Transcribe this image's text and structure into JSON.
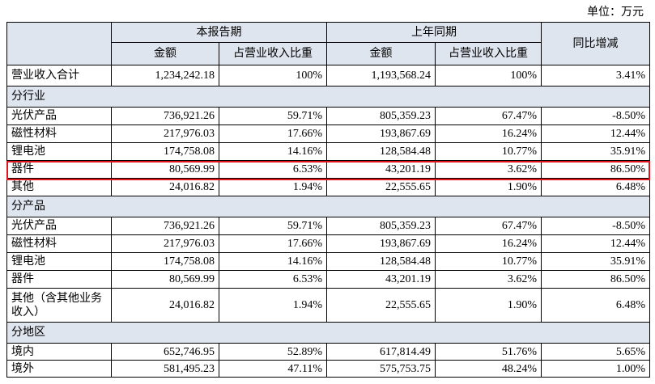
{
  "unit": "单位：万元",
  "table": {
    "header_top": [
      "本报告期",
      "上年同期",
      "同比增减"
    ],
    "header_sub": [
      "金额",
      "占营业收入比重",
      "金额",
      "占营业收入比重"
    ],
    "rows": [
      [
        "营业收入合计",
        "1,234,242.18",
        "100%",
        "1,193,568.24",
        "100%",
        "3.41%"
      ],
      [
        "分行业"
      ],
      [
        "光伏产品",
        "736,921.26",
        "59.71%",
        "805,359.23",
        "67.47%",
        "-8.50%"
      ],
      [
        "磁性材料",
        "217,976.03",
        "17.66%",
        "193,867.69",
        "16.24%",
        "12.44%"
      ],
      [
        "锂电池",
        "174,758.08",
        "14.16%",
        "128,584.48",
        "10.77%",
        "35.91%"
      ],
      [
        "器件",
        "80,569.99",
        "6.53%",
        "43,201.19",
        "3.62%",
        "86.50%"
      ],
      [
        "其他",
        "24,016.82",
        "1.94%",
        "22,555.65",
        "1.90%",
        "6.48%"
      ],
      [
        "分产品"
      ],
      [
        "光伏产品",
        "736,921.26",
        "59.71%",
        "805,359.23",
        "67.47%",
        "-8.50%"
      ],
      [
        "磁性材料",
        "217,976.03",
        "17.66%",
        "193,867.69",
        "16.24%",
        "12.44%"
      ],
      [
        "锂电池",
        "174,758.08",
        "14.16%",
        "128,584.48",
        "10.77%",
        "35.91%"
      ],
      [
        "器件",
        "80,569.99",
        "6.53%",
        "43,201.19",
        "3.62%",
        "86.50%"
      ],
      [
        "其他（含其他业务收入）",
        "24,016.82",
        "1.94%",
        "22,555.65",
        "1.90%",
        "6.48%"
      ],
      [
        "分地区"
      ],
      [
        "境内",
        "652,746.95",
        "52.89%",
        "617,814.49",
        "51.76%",
        "5.65%"
      ],
      [
        "境外",
        "581,495.23",
        "47.11%",
        "575,753.75",
        "48.24%",
        "1.00%"
      ]
    ]
  }
}
